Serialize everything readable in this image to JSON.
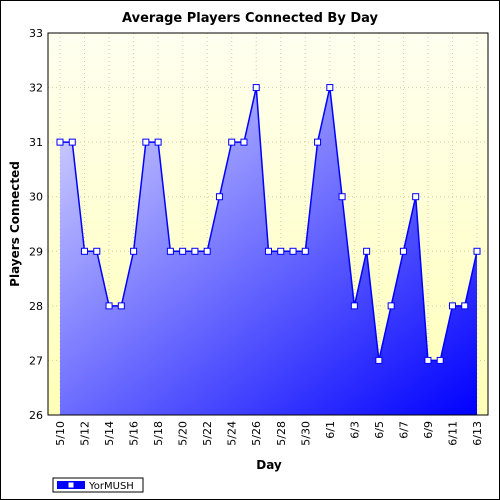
{
  "colors": {
    "background_top": "#fffff0",
    "background_bottom": "#ffffb8",
    "line": "#0000ff",
    "fill_light": "#d8d8ff",
    "fill_dark": "#0000ff",
    "marker_fill": "#ffffff",
    "grid": "#cfcfa8"
  },
  "chart_data": {
    "type": "area",
    "title": "Average Players Connected By Day",
    "xlabel": "Day",
    "ylabel": "Players Connected",
    "ylim": [
      26,
      33
    ],
    "y_ticks": [
      26,
      27,
      28,
      29,
      30,
      31,
      32,
      33
    ],
    "x": [
      "5/10",
      "5/11",
      "5/12",
      "5/13",
      "5/14",
      "5/15",
      "5/16",
      "5/17",
      "5/18",
      "5/19",
      "5/20",
      "5/21",
      "5/22",
      "5/23",
      "5/24",
      "5/25",
      "5/26",
      "5/27",
      "5/28",
      "5/29",
      "5/30",
      "5/31",
      "6/1",
      "6/2",
      "6/3",
      "6/4",
      "6/5",
      "6/6",
      "6/7",
      "6/8",
      "6/9",
      "6/10",
      "6/11",
      "6/12",
      "6/13"
    ],
    "x_tick_labels": [
      "5/10",
      "5/12",
      "5/14",
      "5/16",
      "5/18",
      "5/20",
      "5/22",
      "5/24",
      "5/26",
      "5/28",
      "5/30",
      "6/1",
      "6/3",
      "6/5",
      "6/7",
      "6/9",
      "6/11",
      "6/13"
    ],
    "grid": true,
    "legend_position": "bottom-left",
    "series": [
      {
        "name": "YorMUSH",
        "values": [
          31,
          31,
          29,
          29,
          28,
          28,
          29,
          31,
          31,
          29,
          29,
          29,
          29,
          30,
          31,
          31,
          32,
          29,
          29,
          29,
          29,
          31,
          32,
          30,
          28,
          29,
          27,
          28,
          29,
          30,
          27,
          27,
          28,
          28,
          29
        ]
      }
    ]
  }
}
